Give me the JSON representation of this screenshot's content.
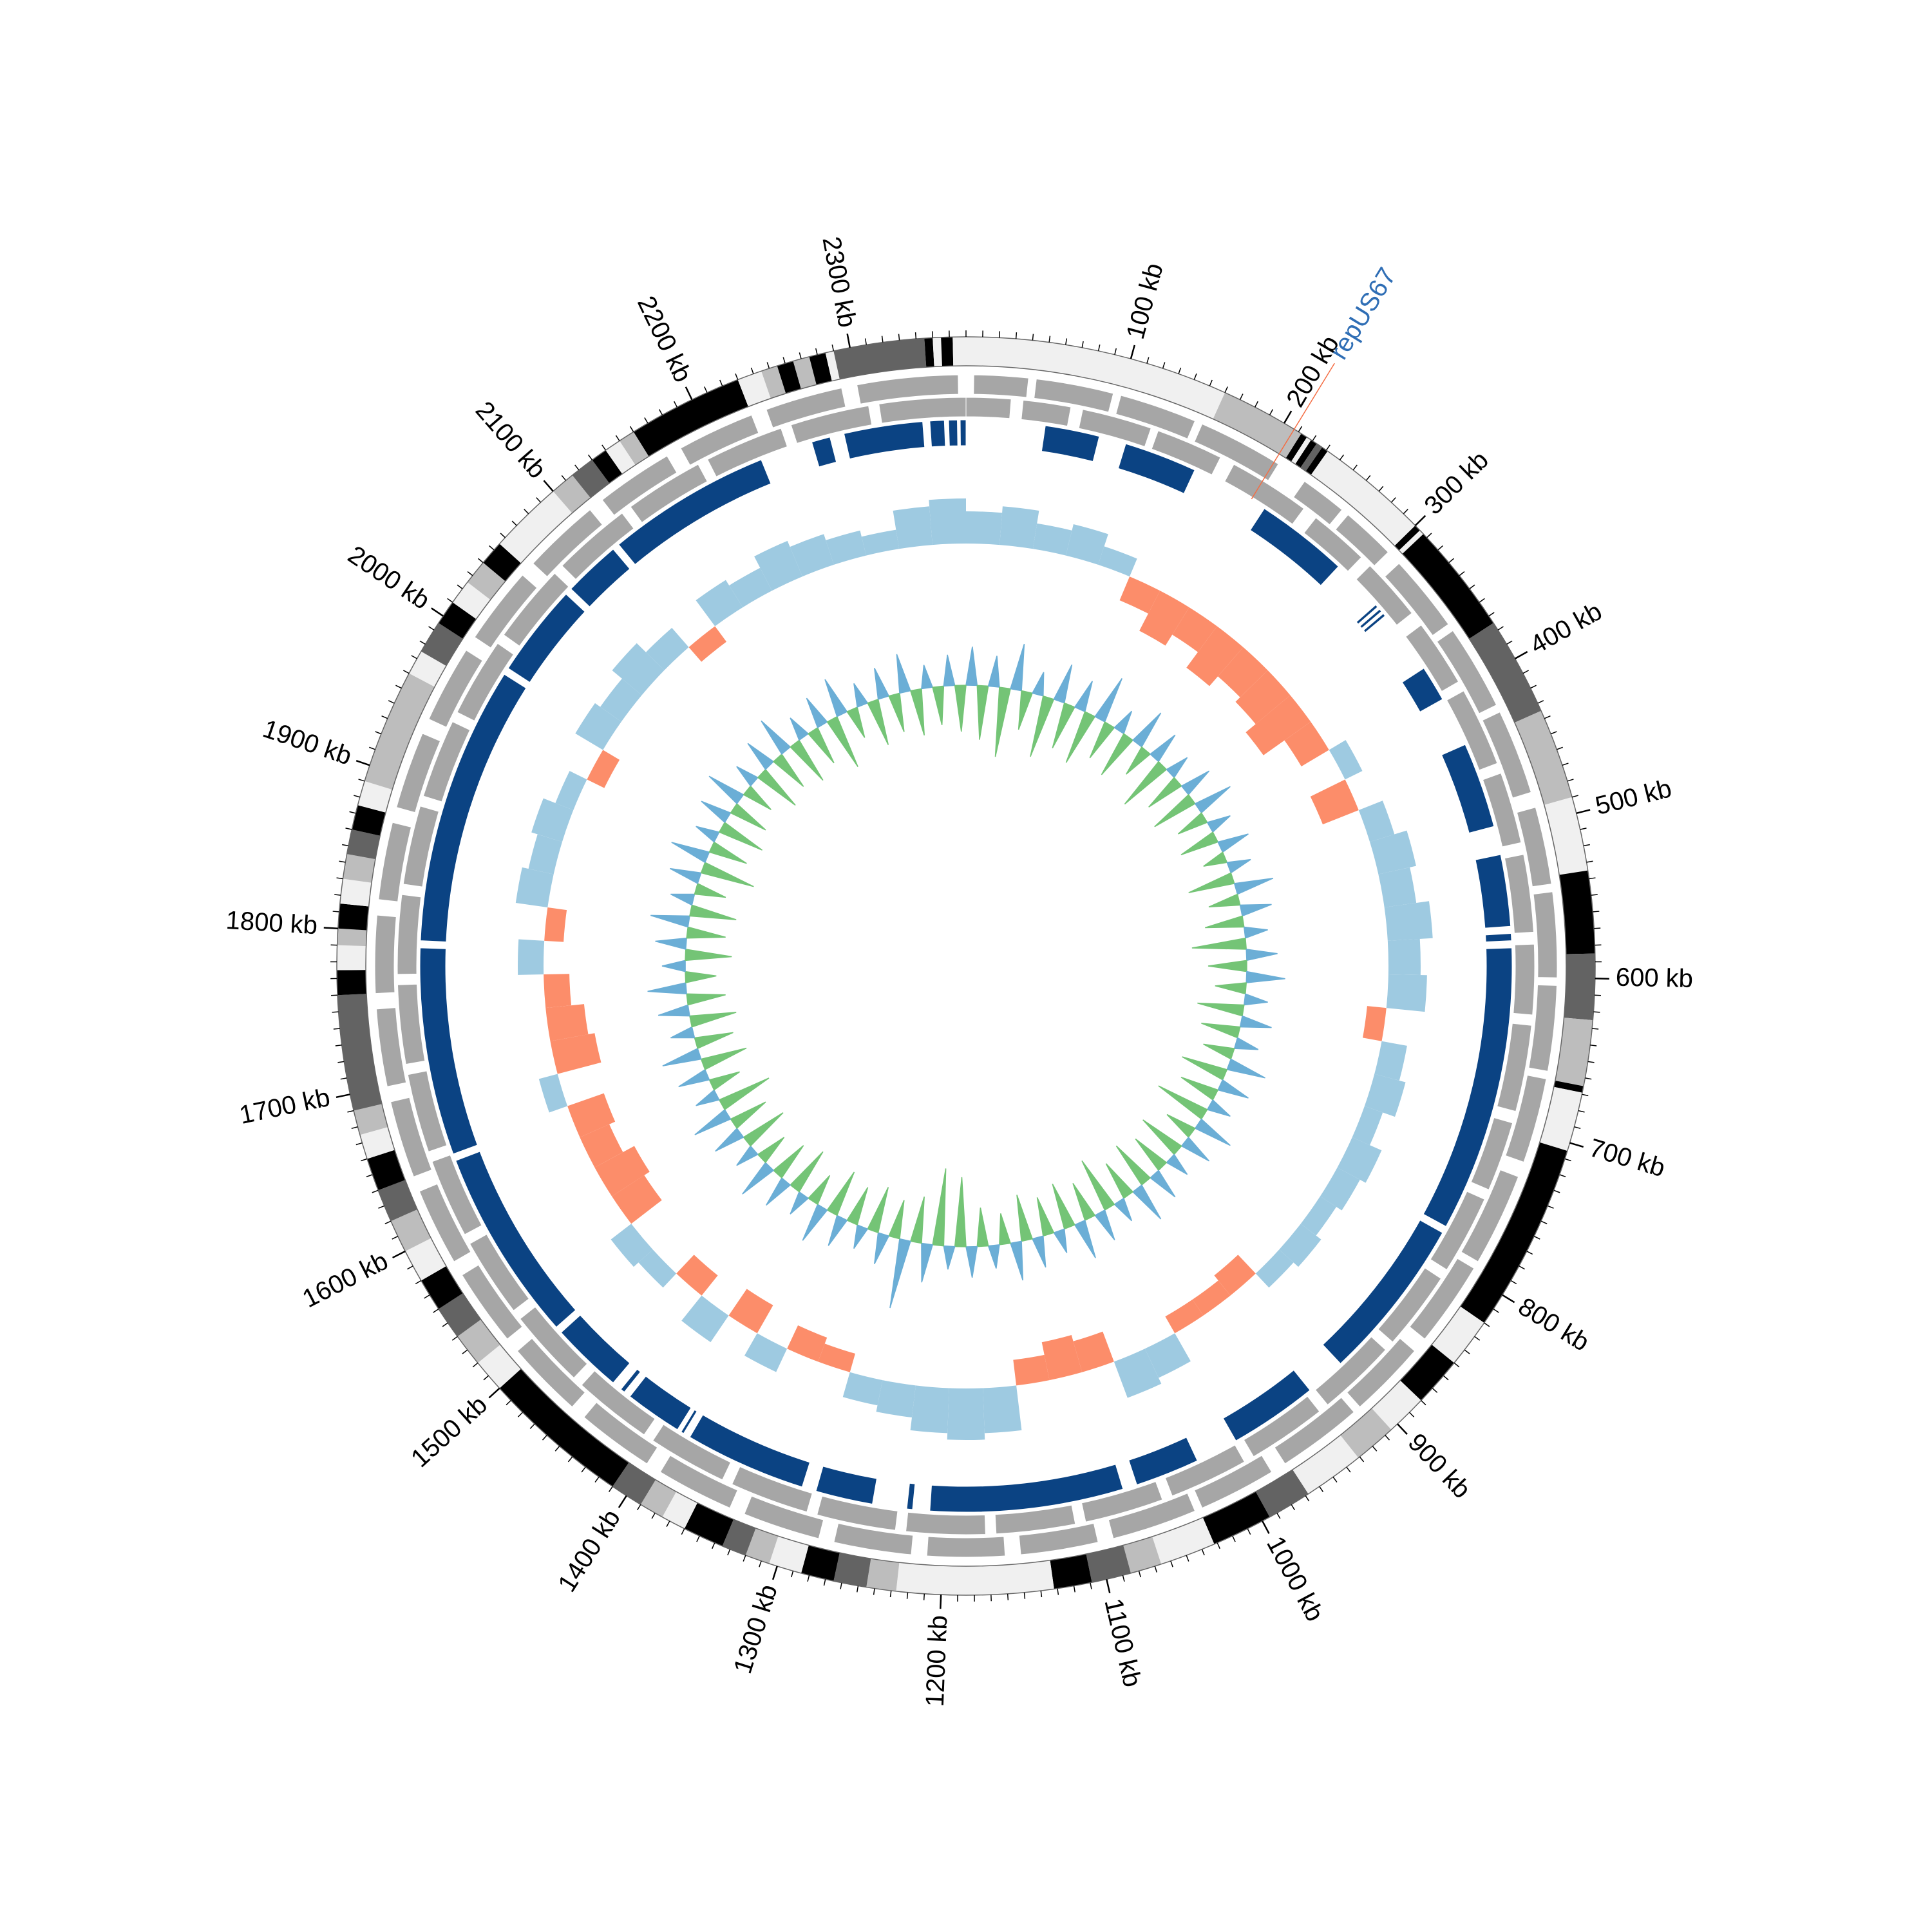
{
  "chart_data": {
    "type": "circular",
    "xlim": [
      0,
      2370
    ],
    "xticks": [
      {
        "value": 100,
        "label": "100 kb"
      },
      {
        "value": 200,
        "label": "200 kb"
      },
      {
        "value": 300,
        "label": "300 kb"
      },
      {
        "value": 400,
        "label": "400 kb"
      },
      {
        "value": 500,
        "label": "500 kb"
      },
      {
        "value": 600,
        "label": "600 kb"
      },
      {
        "value": 700,
        "label": "700 kb"
      },
      {
        "value": 800,
        "label": "800 kb"
      },
      {
        "value": 900,
        "label": "900 kb"
      },
      {
        "value": 1000,
        "label": "1000 kb"
      },
      {
        "value": 1100,
        "label": "1100 kb"
      },
      {
        "value": 1200,
        "label": "1200 kb"
      },
      {
        "value": 1300,
        "label": "1300 kb"
      },
      {
        "value": 1400,
        "label": "1400 kb"
      },
      {
        "value": 1500,
        "label": "1500 kb"
      },
      {
        "value": 1600,
        "label": "1600 kb"
      },
      {
        "value": 1700,
        "label": "1700 kb"
      },
      {
        "value": 1800,
        "label": "1800 kb"
      },
      {
        "value": 1900,
        "label": "1900 kb"
      },
      {
        "value": 2000,
        "label": "2000 kb"
      },
      {
        "value": 2100,
        "label": "2100 kb"
      },
      {
        "value": 2200,
        "label": "2200 kb"
      },
      {
        "value": 2300,
        "label": "2300 kb"
      }
    ],
    "minor_xtick_step": 10,
    "annotation": {
      "label": "repUS67",
      "position": 207,
      "label_color": "#2f6eb5",
      "line_color": "#f46d43"
    },
    "tracks": [
      {
        "type": "bands",
        "starts": [
          0,
          160,
          212,
          216,
          219,
          223,
          227,
          231,
          300,
          304,
          307,
          375,
          435,
          490,
          535,
          585,
          625,
          665,
          669,
          705,
          820,
          850,
          880,
          905,
          931,
          968,
          995,
          1032,
          1066,
          1085,
          1109,
          1132,
          1227,
          1245,
          1265,
          1285,
          1305,
          1320,
          1335,
          1360,
          1375,
          1390,
          1410,
          1500,
          1520,
          1540,
          1560,
          1580,
          1600,
          1620,
          1640,
          1660,
          1675,
          1690,
          1760,
          1775,
          1790,
          1800,
          1815,
          1830,
          1845,
          1860,
          1875,
          1890,
          1960,
          1975,
          1995,
          2010,
          2025,
          2040,
          2055,
          2100,
          2115,
          2130,
          2140,
          2150,
          2160,
          2230,
          2245,
          2255,
          2265,
          2275,
          2285,
          2290,
          2345,
          2350,
          2355,
          2362
        ],
        "ends": [
          160,
          212,
          216,
          219,
          223,
          227,
          231,
          300,
          304,
          307,
          375,
          435,
          490,
          535,
          585,
          625,
          665,
          669,
          705,
          820,
          850,
          880,
          905,
          931,
          968,
          995,
          1032,
          1066,
          1085,
          1109,
          1132,
          1227,
          1245,
          1265,
          1285,
          1305,
          1320,
          1335,
          1360,
          1375,
          1390,
          1410,
          1500,
          1520,
          1540,
          1560,
          1580,
          1600,
          1620,
          1640,
          1660,
          1675,
          1690,
          1760,
          1775,
          1790,
          1800,
          1815,
          1830,
          1845,
          1860,
          1875,
          1890,
          1960,
          1975,
          1995,
          2010,
          2025,
          2040,
          2055,
          2100,
          2115,
          2130,
          2140,
          2150,
          2160,
          2230,
          2245,
          2255,
          2265,
          2275,
          2285,
          2290,
          2345,
          2350,
          2355,
          2362,
          2370
        ],
        "colors": [
          "#f0f0f0",
          "#bdbdbd",
          "#000000",
          "#f0f0f0",
          "#000000",
          "#636363",
          "#000000",
          "#f0f0f0",
          "#000000",
          "#f0f0f0",
          "#000000",
          "#636363",
          "#bdbdbd",
          "#f0f0f0",
          "#000000",
          "#636363",
          "#bdbdbd",
          "#000000",
          "#f0f0f0",
          "#000000",
          "#f0f0f0",
          "#000000",
          "#f0f0f0",
          "#bdbdbd",
          "#f0f0f0",
          "#636363",
          "#000000",
          "#f0f0f0",
          "#bdbdbd",
          "#636363",
          "#000000",
          "#f0f0f0",
          "#bdbdbd",
          "#636363",
          "#000000",
          "#f0f0f0",
          "#bdbdbd",
          "#636363",
          "#000000",
          "#f0f0f0",
          "#bdbdbd",
          "#636363",
          "#000000",
          "#f0f0f0",
          "#bdbdbd",
          "#636363",
          "#000000",
          "#f0f0f0",
          "#bdbdbd",
          "#636363",
          "#000000",
          "#f0f0f0",
          "#bdbdbd",
          "#636363",
          "#000000",
          "#f0f0f0",
          "#bdbdbd",
          "#000000",
          "#f0f0f0",
          "#bdbdbd",
          "#636363",
          "#000000",
          "#f0f0f0",
          "#bdbdbd",
          "#f0f0f0",
          "#636363",
          "#000000",
          "#f0f0f0",
          "#bdbdbd",
          "#000000",
          "#f0f0f0",
          "#bdbdbd",
          "#636363",
          "#000000",
          "#f0f0f0",
          "#bdbdbd",
          "#000000",
          "#f0f0f0",
          "#bdbdbd",
          "#000000",
          "#bdbdbd",
          "#000000",
          "#f0f0f0",
          "#636363",
          "#000000",
          "#f0f0f0",
          "#000000",
          "#f0f0f0"
        ]
      },
      {
        "type": "tiles",
        "color": "#a6a6a6",
        "starts": [
          5,
          45,
          100,
          155,
          230,
          265,
          310,
          365,
          425,
          490,
          545,
          605,
          665,
          730,
          795,
          860,
          915,
          980,
          1035,
          1100,
          1160,
          1220,
          1280,
          1340,
          1400,
          1460,
          1520,
          1580,
          1640,
          1700,
          1760,
          1820,
          1880,
          1940,
          2000,
          2060,
          2120,
          2180,
          2240,
          2300
        ],
        "ends": [
          40,
          95,
          150,
          210,
          260,
          300,
          360,
          420,
          480,
          540,
          600,
          660,
          720,
          790,
          850,
          910,
          970,
          1030,
          1090,
          1150,
          1210,
          1270,
          1330,
          1390,
          1450,
          1510,
          1570,
          1630,
          1690,
          1750,
          1810,
          1870,
          1930,
          1990,
          2050,
          2110,
          2170,
          2230,
          2290,
          2365
        ]
      },
      {
        "type": "tiles",
        "color": "#a6a6a6",
        "starts": [
          0,
          38,
          78,
          130,
          185,
          250,
          298,
          350,
          402,
          462,
          518,
          578,
          632,
          698,
          752,
          812,
          872,
          932,
          992,
          1052,
          1112,
          1172,
          1232,
          1292,
          1352,
          1412,
          1472,
          1532,
          1592,
          1652,
          1712,
          1772,
          1832,
          1892,
          1952,
          2012,
          2072,
          2132,
          2192,
          2252,
          2312
        ],
        "ends": [
          30,
          70,
          125,
          175,
          240,
          290,
          340,
          395,
          455,
          510,
          570,
          625,
          690,
          745,
          805,
          865,
          925,
          985,
          1045,
          1105,
          1165,
          1225,
          1285,
          1345,
          1405,
          1465,
          1525,
          1585,
          1645,
          1705,
          1765,
          1825,
          1885,
          1945,
          2005,
          2065,
          2125,
          2185,
          2245,
          2305,
          2370
        ]
      },
      {
        "type": "tiles",
        "color": "#0b4383",
        "starts": [
          55,
          112,
          218,
          320,
          324,
          328,
          375,
          435,
          515,
          570,
          580,
          785,
          928,
          1020,
          1075,
          1222,
          1250,
          1300,
          1390,
          1395,
          1440,
          1450,
          1505,
          1645,
          1795,
          1995,
          2065,
          2110,
          2262,
          2285,
          2345,
          2358,
          2366
        ],
        "ends": [
          93,
          163,
          283,
          322,
          326,
          330,
          400,
          495,
          565,
          575,
          780,
          900,
          990,
          1065,
          1210,
          1226,
          1290,
          1385,
          1392,
          1435,
          1443,
          1500,
          1640,
          1790,
          1990,
          2060,
          2105,
          2225,
          2275,
          2340,
          2355,
          2364,
          2370
        ]
      },
      {
        "type": "histogram",
        "positive_color": "#9ecae1",
        "negative_color": "#fc8d6a",
        "ylim": [
          -1,
          1
        ],
        "bins": [
          0,
          30,
          60,
          90,
          120,
          150,
          180,
          210,
          240,
          270,
          300,
          330,
          360,
          390,
          420,
          450,
          480,
          510,
          540,
          570,
          600,
          630,
          660,
          690,
          720,
          750,
          780,
          810,
          840,
          870,
          900,
          930,
          960,
          990,
          1020,
          1050,
          1080,
          1110,
          1140,
          1170,
          1200,
          1230,
          1260,
          1290,
          1320,
          1350,
          1380,
          1410,
          1440,
          1470,
          1500,
          1530,
          1560,
          1590,
          1620,
          1650,
          1680,
          1710,
          1740,
          1770,
          1800,
          1830,
          1860,
          1890,
          1920,
          1950,
          1980,
          2010,
          2040,
          2070,
          2100,
          2130,
          2160,
          2190,
          2220,
          2250,
          2280,
          2310,
          2340,
          2370
        ],
        "values": [
          0.5,
          0.6,
          0.4,
          0.5,
          0.3,
          -0.4,
          -0.7,
          -0.5,
          -0.8,
          -0.6,
          -0.7,
          -0.9,
          -0.5,
          0.3,
          -0.6,
          0.4,
          0.6,
          0.5,
          0.7,
          0.5,
          0.6,
          -0.3,
          0.4,
          0.5,
          0.3,
          0.5,
          0.4,
          0.3,
          0.4,
          0.3,
          -0.4,
          -0.3,
          -0.3,
          0.5,
          0.6,
          -0.5,
          -0.6,
          -0.4,
          0.7,
          0.8,
          0.7,
          0.5,
          0.4,
          -0.3,
          -0.4,
          0.4,
          -0.5,
          0.5,
          -0.4,
          0.3,
          0.4,
          -0.6,
          -0.7,
          -0.5,
          -0.6,
          0.3,
          -0.7,
          -0.6,
          -0.4,
          0.4,
          -0.3,
          0.5,
          0.4,
          0.5,
          0.3,
          -0.3,
          0.5,
          0.4,
          0.6,
          0.4,
          -0.3,
          0.5,
          0.4,
          0.6,
          0.5,
          0.4,
          0.3,
          0.6,
          0.7
        ]
      },
      {
        "type": "spikes",
        "positive_color": "#6baed6",
        "negative_color": "#74c476",
        "ylim": [
          -1,
          1
        ],
        "bins": [
          0,
          15,
          30,
          45,
          60,
          75,
          90,
          105,
          120,
          135,
          150,
          165,
          180,
          195,
          210,
          225,
          240,
          255,
          270,
          285,
          300,
          315,
          330,
          345,
          360,
          375,
          390,
          405,
          420,
          435,
          450,
          465,
          480,
          495,
          510,
          525,
          540,
          555,
          570,
          585,
          600,
          615,
          630,
          645,
          660,
          675,
          690,
          705,
          720,
          735,
          750,
          765,
          780,
          795,
          810,
          825,
          840,
          855,
          870,
          885,
          900,
          915,
          930,
          945,
          960,
          975,
          990,
          1005,
          1020,
          1035,
          1050,
          1065,
          1080,
          1095,
          1110,
          1125,
          1140,
          1155,
          1170,
          1185,
          1200,
          1215,
          1230,
          1245,
          1260,
          1275,
          1290,
          1305,
          1320,
          1335,
          1350,
          1365,
          1380,
          1395,
          1410,
          1425,
          1440,
          1455,
          1470,
          1485,
          1500,
          1515,
          1530,
          1545,
          1560,
          1575,
          1590,
          1605,
          1620,
          1635,
          1650,
          1665,
          1680,
          1695,
          1710,
          1725,
          1740,
          1755,
          1770,
          1785,
          1800,
          1815,
          1830,
          1845,
          1860,
          1875,
          1890,
          1905,
          1920,
          1935,
          1950,
          1965,
          1980,
          1995,
          2010,
          2025,
          2040,
          2055,
          2070,
          2085,
          2100,
          2115,
          2130,
          2145,
          2160,
          2175,
          2190,
          2205,
          2220,
          2235,
          2250,
          2265,
          2280,
          2295,
          2310,
          2325,
          2340,
          2355,
          2370
        ],
        "values": [
          0.5,
          -0.7,
          0.4,
          -0.9,
          0.6,
          -0.5,
          0.3,
          -0.8,
          0.5,
          -0.6,
          0.4,
          -0.7,
          0.6,
          -0.5,
          0.3,
          -0.6,
          0.5,
          -0.4,
          0.4,
          -0.7,
          0.3,
          -0.5,
          0.4,
          -0.6,
          0.5,
          -0.4,
          0.3,
          -0.5,
          0.4,
          -0.3,
          0.3,
          -0.6,
          0.5,
          -0.4,
          0.4,
          -0.5,
          0.3,
          -0.7,
          0.4,
          -0.5,
          0.5,
          -0.4,
          0.3,
          -0.6,
          0.4,
          -0.5,
          0.3,
          -0.4,
          0.5,
          -0.6,
          0.4,
          -0.5,
          0.3,
          -0.7,
          0.5,
          -0.4,
          0.4,
          -0.6,
          0.3,
          -0.5,
          0.4,
          -0.6,
          0.5,
          -0.5,
          0.3,
          -0.7,
          0.4,
          -0.5,
          0.5,
          -0.6,
          0.3,
          -0.5,
          0.4,
          -0.6,
          0.5,
          -0.4,
          0.3,
          -0.5,
          0.4,
          -0.9,
          0.3,
          -1,
          0.5,
          -0.6,
          0.9,
          -0.5,
          0.4,
          -0.6,
          0.3,
          -0.5,
          0.4,
          -0.6,
          0.5,
          -0.4,
          0.3,
          -0.6,
          0.4,
          -0.5,
          0.5,
          -0.4,
          0.3,
          -0.6,
          0.4,
          -0.5,
          0.5,
          -0.7,
          0.3,
          -0.4,
          0.4,
          -0.6,
          0.5,
          -0.5,
          0.3,
          -0.6,
          0.4,
          -0.5,
          0.5,
          -0.4,
          0.3,
          -0.6,
          0.4,
          -0.5,
          0.5,
          -0.6,
          0.3,
          -0.4,
          0.4,
          -0.7,
          0.5,
          -0.5,
          0.3,
          -0.6,
          0.4,
          -0.5,
          0.5,
          -0.4,
          0.3,
          -0.6,
          0.4,
          -0.5,
          0.5,
          -0.6,
          0.3,
          -0.5,
          0.4,
          -0.7,
          0.5,
          -0.4,
          0.3,
          -0.6,
          0.4,
          -0.5,
          0.5,
          -0.6,
          0.3,
          -0.5,
          0.4,
          -0.6
        ]
      }
    ]
  }
}
